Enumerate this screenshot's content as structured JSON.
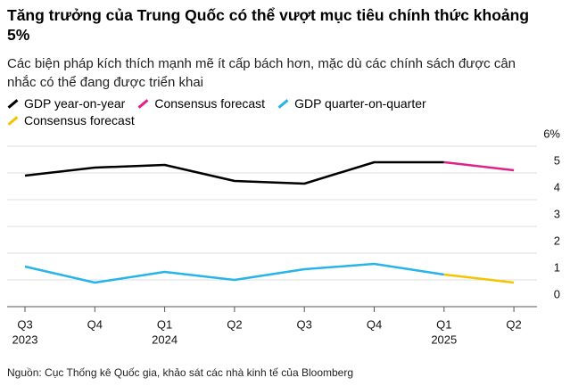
{
  "chart_data": {
    "type": "line",
    "title": "Tăng trưởng của Trung Quốc có thể vượt mục tiêu chính thức khoảng 5%",
    "subtitle": "Các biện pháp kích thích mạnh mẽ ít cấp bách hơn, mặc dù các chính sách được cân nhắc có thể đang được triển khai",
    "categories": [
      "Q3",
      "Q4",
      "Q1",
      "Q2",
      "Q3",
      "Q4",
      "Q1",
      "Q2"
    ],
    "year_labels": [
      "2023",
      null,
      "2024",
      null,
      null,
      null,
      "2025",
      null
    ],
    "series": [
      {
        "name": "GDP year-on-year",
        "color": "#000000",
        "values": [
          4.9,
          5.2,
          5.3,
          4.7,
          4.6,
          5.4,
          5.4,
          null
        ]
      },
      {
        "name": "Consensus forecast",
        "color": "#e0218a",
        "values": [
          null,
          null,
          null,
          null,
          null,
          null,
          5.4,
          5.1
        ]
      },
      {
        "name": "GDP quarter-on-quarter",
        "color": "#27b4e8",
        "values": [
          1.5,
          0.9,
          1.3,
          1.0,
          1.4,
          1.6,
          1.2,
          null
        ]
      },
      {
        "name": "Consensus forecast",
        "color": "#f5c400",
        "values": [
          null,
          null,
          null,
          null,
          null,
          null,
          1.2,
          0.9
        ]
      }
    ],
    "ylim": [
      0,
      6
    ],
    "yticks": [
      0,
      1,
      2,
      3,
      4,
      5,
      {
        "value": 6,
        "label": "6%"
      }
    ],
    "grid": true,
    "source": "Nguồn: Cục Thống kê Quốc gia, khảo sát các nhà kinh tế của Bloomberg"
  }
}
